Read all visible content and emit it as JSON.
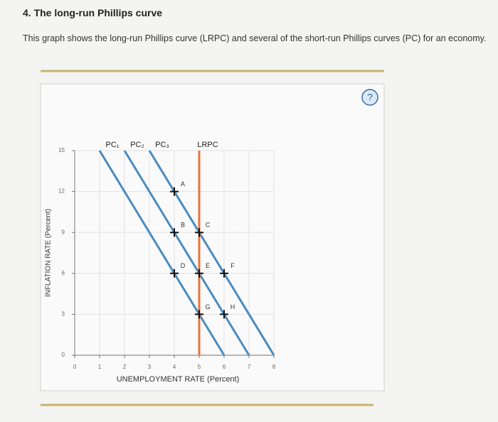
{
  "header": {
    "title": "4. The long-run Phillips curve",
    "description": "This graph shows the long-run Phillips curve (LRPC) and several of the short-run Phillips curves (PC) for an economy."
  },
  "help_label": "?",
  "chart_data": {
    "type": "line",
    "x_label": "UNEMPLOYMENT RATE (Percent)",
    "y_label": "INFLATION RATE (Percent)",
    "xlim": [
      0,
      8
    ],
    "xticks": [
      0,
      1,
      2,
      3,
      4,
      5,
      6,
      7,
      8
    ],
    "ylim": [
      0,
      15
    ],
    "yticks": [
      0,
      3,
      6,
      9,
      12,
      15
    ],
    "grid": true,
    "series": [
      {
        "name": "PC₁",
        "color": "#4a8cc0",
        "x": [
          1,
          6
        ],
        "values": [
          15,
          0
        ]
      },
      {
        "name": "PC₂",
        "color": "#4a8cc0",
        "x": [
          2,
          7
        ],
        "values": [
          15,
          0
        ]
      },
      {
        "name": "PC₃",
        "color": "#4a8cc0",
        "x": [
          3,
          8
        ],
        "values": [
          15,
          0
        ]
      },
      {
        "name": "LRPC",
        "color": "#e8743b",
        "x": [
          5,
          5
        ],
        "values": [
          15,
          0
        ]
      }
    ],
    "points": [
      {
        "label": "A",
        "x": 4,
        "y": 12
      },
      {
        "label": "B",
        "x": 4,
        "y": 9
      },
      {
        "label": "C",
        "x": 5,
        "y": 9
      },
      {
        "label": "D",
        "x": 4,
        "y": 6
      },
      {
        "label": "E",
        "x": 5,
        "y": 6
      },
      {
        "label": "F",
        "x": 6,
        "y": 6
      },
      {
        "label": "G",
        "x": 5,
        "y": 3
      },
      {
        "label": "H",
        "x": 6,
        "y": 3
      }
    ]
  }
}
